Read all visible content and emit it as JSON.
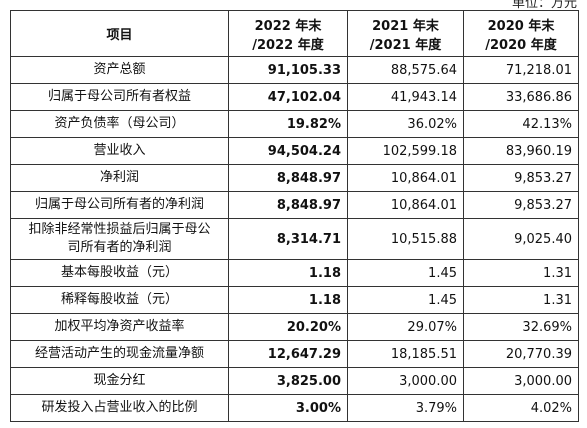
{
  "unit": "单位：万元",
  "table": {
    "header": [
      [
        "项目"
      ],
      [
        "2022 年末",
        "/2022 年度"
      ],
      [
        "2021 年末",
        "/2021 年度"
      ],
      [
        "2020 年末",
        "/2020 年度"
      ]
    ],
    "rows": [
      [
        [
          "资产总额"
        ],
        "91,105.33",
        "88,575.64",
        "71,218.01"
      ],
      [
        [
          "归属于母公司所有者权益"
        ],
        "47,102.04",
        "41,943.14",
        "33,686.86"
      ],
      [
        [
          "资产负债率（母公司）"
        ],
        "19.82%",
        "36.02%",
        "42.13%"
      ],
      [
        [
          "营业收入"
        ],
        "94,504.24",
        "102,599.18",
        "83,960.19"
      ],
      [
        [
          "净利润"
        ],
        "8,848.97",
        "10,864.01",
        "9,853.27"
      ],
      [
        [
          "归属于母公司所有者的净利润"
        ],
        "8,848.97",
        "10,864.01",
        "9,853.27"
      ],
      [
        [
          "扣除非经常性损益后归属于母公",
          "司所有者的净利润"
        ],
        "8,314.71",
        "10,515.88",
        "9,025.40"
      ],
      [
        [
          "基本每股收益（元）"
        ],
        "1.18",
        "1.45",
        "1.31"
      ],
      [
        [
          "稀释每股收益（元）"
        ],
        "1.18",
        "1.45",
        "1.31"
      ],
      [
        [
          "加权平均净资产收益率"
        ],
        "20.20%",
        "29.07%",
        "32.69%"
      ],
      [
        [
          "经营活动产生的现金流量净额"
        ],
        "12,647.29",
        "18,185.51",
        "20,770.39"
      ],
      [
        [
          "现金分红"
        ],
        "3,825.00",
        "3,000.00",
        "3,000.00"
      ],
      [
        [
          "研发投入占营业收入的比例"
        ],
        "3.00%",
        "3.79%",
        "4.02%"
      ]
    ]
  }
}
